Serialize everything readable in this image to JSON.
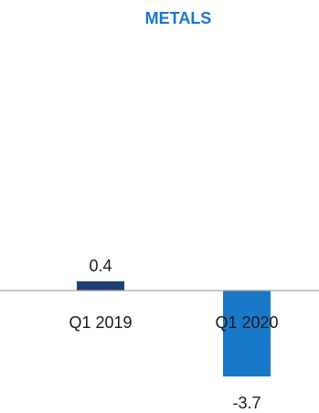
{
  "chart_data": {
    "type": "bar",
    "title": "METALS",
    "categories": [
      "Q1 2019",
      "Q1 2020"
    ],
    "values": [
      0.4,
      -3.7
    ],
    "data_labels": [
      "0.4",
      "-3.7"
    ],
    "bar_colors": [
      "#1f3f74",
      "#1a78c8"
    ],
    "title_color": "#1a78c8",
    "axis_color": "#a6a6a6",
    "ylim": [
      -3.7,
      0.4
    ],
    "grid": false,
    "legend": "none"
  }
}
